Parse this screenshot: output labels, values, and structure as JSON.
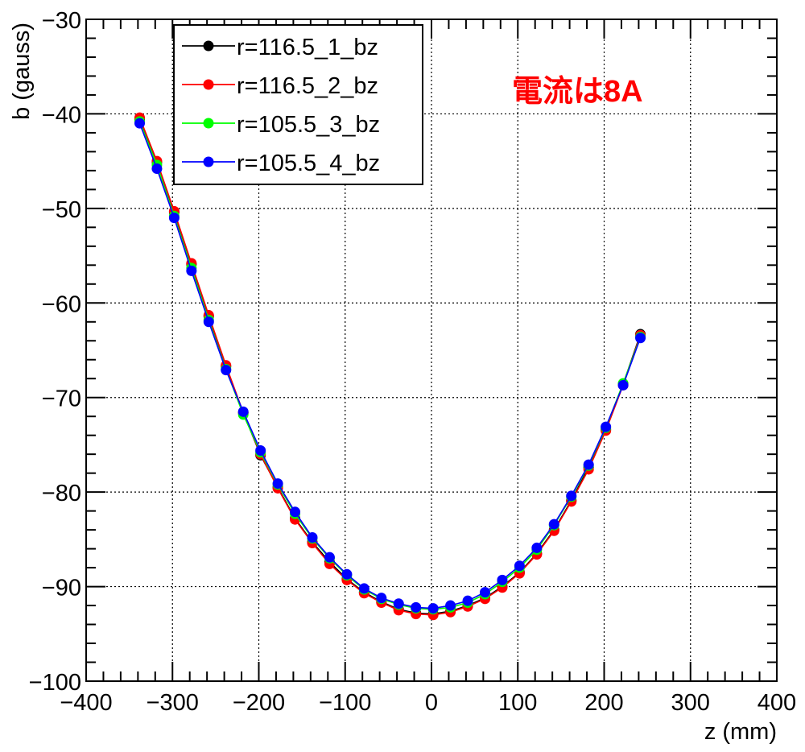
{
  "chart_data": {
    "type": "line",
    "title": "",
    "xlabel": "z (mm)",
    "ylabel": "b (gauss)",
    "xlim": [
      -400,
      400
    ],
    "ylim": [
      -100,
      -30
    ],
    "grid": true,
    "legend_position": "top-left",
    "x_ticks": [
      -400,
      -300,
      -200,
      -100,
      0,
      100,
      200,
      300,
      400
    ],
    "x_tick_labels": [
      "−400",
      "−300",
      "−200",
      "−100",
      "0",
      "100",
      "200",
      "300",
      "400"
    ],
    "y_ticks": [
      -100,
      -90,
      -80,
      -70,
      -60,
      -50,
      -40,
      -30
    ],
    "y_tick_labels": [
      "−100",
      "−90",
      "−80",
      "−70",
      "−60",
      "−50",
      "−40",
      "−30"
    ],
    "annotation": {
      "text": "電流は8A",
      "color": "#ff0000"
    },
    "x": [
      -338,
      -318,
      -298,
      -278,
      -258,
      -238,
      -218,
      -198,
      -178,
      -158,
      -138,
      -118,
      -98,
      -78,
      -58,
      -38,
      -18,
      2,
      22,
      42,
      62,
      82,
      102,
      122,
      142,
      162,
      182,
      202,
      222,
      242
    ],
    "series": [
      {
        "name": "r=116.5_1_bz",
        "color": "#000000",
        "values": [
          -40.6,
          -45.1,
          -50.4,
          -55.9,
          -61.4,
          -66.7,
          -71.6,
          -76.1,
          -79.5,
          -82.8,
          -85.3,
          -87.4,
          -89.2,
          -90.6,
          -91.6,
          -92.4,
          -92.8,
          -92.9,
          -92.6,
          -92.0,
          -91.2,
          -90.0,
          -88.5,
          -86.5,
          -84.0,
          -80.9,
          -77.4,
          -73.4,
          -68.6,
          -63.3
        ]
      },
      {
        "name": "r=116.5_2_bz",
        "color": "#ff0000",
        "values": [
          -40.4,
          -45.0,
          -50.3,
          -55.8,
          -61.3,
          -66.6,
          -71.6,
          -76.0,
          -79.6,
          -82.9,
          -85.4,
          -87.6,
          -89.3,
          -90.7,
          -91.7,
          -92.5,
          -92.9,
          -93.0,
          -92.7,
          -92.1,
          -91.3,
          -90.1,
          -88.6,
          -86.6,
          -84.1,
          -81.0,
          -77.6,
          -73.5,
          -68.7,
          -63.4
        ]
      },
      {
        "name": "r=105.5_3_bz",
        "color": "#00ff00",
        "values": [
          -40.8,
          -45.4,
          -50.8,
          -56.3,
          -61.8,
          -67.0,
          -71.8,
          -75.8,
          -79.2,
          -82.3,
          -84.9,
          -87.0,
          -88.8,
          -90.3,
          -91.3,
          -91.9,
          -92.3,
          -92.4,
          -92.2,
          -91.7,
          -90.8,
          -89.5,
          -88.0,
          -86.1,
          -83.5,
          -80.5,
          -77.2,
          -73.2,
          -68.5,
          -63.6
        ]
      },
      {
        "name": "r=105.5_4_bz",
        "color": "#0000ff",
        "values": [
          -41.0,
          -45.8,
          -51.0,
          -56.6,
          -62.0,
          -67.1,
          -71.5,
          -75.6,
          -79.1,
          -82.1,
          -84.8,
          -86.9,
          -88.7,
          -90.2,
          -91.2,
          -91.8,
          -92.2,
          -92.3,
          -92.0,
          -91.5,
          -90.6,
          -89.3,
          -87.8,
          -85.9,
          -83.4,
          -80.4,
          -77.1,
          -73.1,
          -68.7,
          -63.7
        ]
      }
    ]
  }
}
